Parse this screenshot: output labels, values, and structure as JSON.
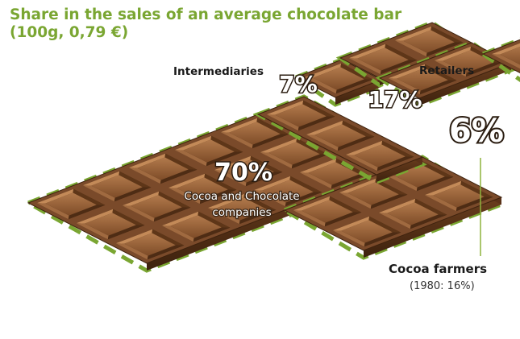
{
  "chart_data": {
    "type": "pie",
    "title": "Share in the sales of an average chocolate bar",
    "subtitle": "(100g, 0,79 €)",
    "unit": "%",
    "slices": [
      {
        "label": "Cocoa and Chocolate companies",
        "value": 70,
        "display": "70%"
      },
      {
        "label": "Intermediaries",
        "value": 7,
        "display": "7%"
      },
      {
        "label": "Retailers",
        "value": 17,
        "display": "17%"
      },
      {
        "label": "Cocoa farmers",
        "value": 6,
        "display": "6%",
        "note": "(1980: 16%)"
      }
    ]
  },
  "colors": {
    "accent": "#7aa632",
    "chocolate": "#7a4a2a",
    "chocolate_light": "#a06a40",
    "chocolate_dark": "#4a2a14"
  }
}
